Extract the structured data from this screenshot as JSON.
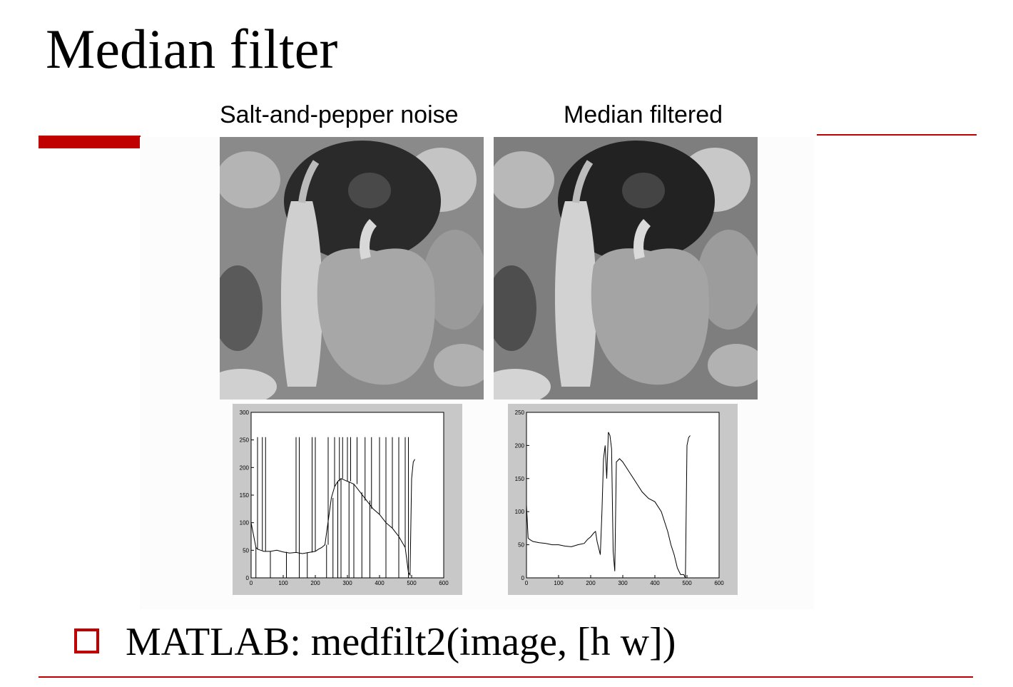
{
  "slide": {
    "title": "Median filter",
    "bullet_text": "MATLAB: medfilt2(image, [h w])",
    "accent_color": "#c00000"
  },
  "images": {
    "left_label": "Salt-and-pepper noise",
    "right_label": "Median filtered",
    "left_icon": "noisy-peppers-photo",
    "right_icon": "filtered-peppers-photo"
  },
  "chart_data": [
    {
      "type": "line",
      "x": [
        0,
        10,
        15,
        20,
        30,
        40,
        60,
        80,
        100,
        120,
        140,
        160,
        180,
        200,
        210,
        220,
        230,
        250,
        260,
        270,
        280,
        300,
        320,
        340,
        360,
        380,
        400,
        420,
        440,
        460,
        480,
        490,
        495,
        500,
        505,
        510
      ],
      "y": [
        100,
        70,
        55,
        52,
        50,
        48,
        48,
        50,
        47,
        45,
        46,
        44,
        46,
        48,
        52,
        55,
        60,
        145,
        165,
        175,
        180,
        175,
        170,
        155,
        140,
        125,
        115,
        100,
        90,
        75,
        55,
        10,
        5,
        180,
        210,
        215
      ],
      "spikes_up": [
        20,
        35,
        45,
        140,
        150,
        190,
        200,
        240,
        260,
        275,
        285,
        300,
        310,
        330,
        355,
        375,
        400,
        420,
        440,
        460,
        480,
        490
      ],
      "spikes_down": [
        15,
        60,
        110,
        150,
        175,
        235,
        255,
        270,
        280,
        305,
        320,
        345,
        370,
        420,
        460,
        490
      ],
      "xticks": [
        "0",
        "100",
        "200",
        "300",
        "400",
        "500",
        "600"
      ],
      "yticks": [
        "0",
        "50",
        "100",
        "150",
        "200",
        "250",
        "300"
      ],
      "xlim": [
        0,
        600
      ],
      "ylim": [
        0,
        300
      ],
      "xlabel": "",
      "ylabel": ""
    },
    {
      "type": "line",
      "x": [
        0,
        5,
        10,
        20,
        40,
        60,
        80,
        100,
        120,
        140,
        160,
        180,
        190,
        200,
        210,
        215,
        220,
        230,
        235,
        240,
        245,
        250,
        255,
        260,
        265,
        270,
        275,
        280,
        290,
        300,
        320,
        340,
        360,
        380,
        400,
        420,
        440,
        450,
        460,
        470,
        480,
        490,
        495,
        500,
        505,
        510
      ],
      "y": [
        110,
        60,
        58,
        55,
        53,
        52,
        50,
        50,
        48,
        47,
        50,
        52,
        58,
        62,
        68,
        70,
        55,
        35,
        100,
        180,
        200,
        150,
        220,
        215,
        195,
        40,
        10,
        175,
        180,
        175,
        160,
        145,
        130,
        120,
        115,
        100,
        70,
        50,
        35,
        15,
        5,
        5,
        0,
        200,
        212,
        215
      ],
      "xticks": [
        "0",
        "100",
        "200",
        "300",
        "400",
        "500",
        "600"
      ],
      "yticks": [
        "0",
        "50",
        "100",
        "150",
        "200",
        "250"
      ],
      "xlim": [
        0,
        600
      ],
      "ylim": [
        0,
        250
      ],
      "xlabel": "",
      "ylabel": ""
    }
  ]
}
